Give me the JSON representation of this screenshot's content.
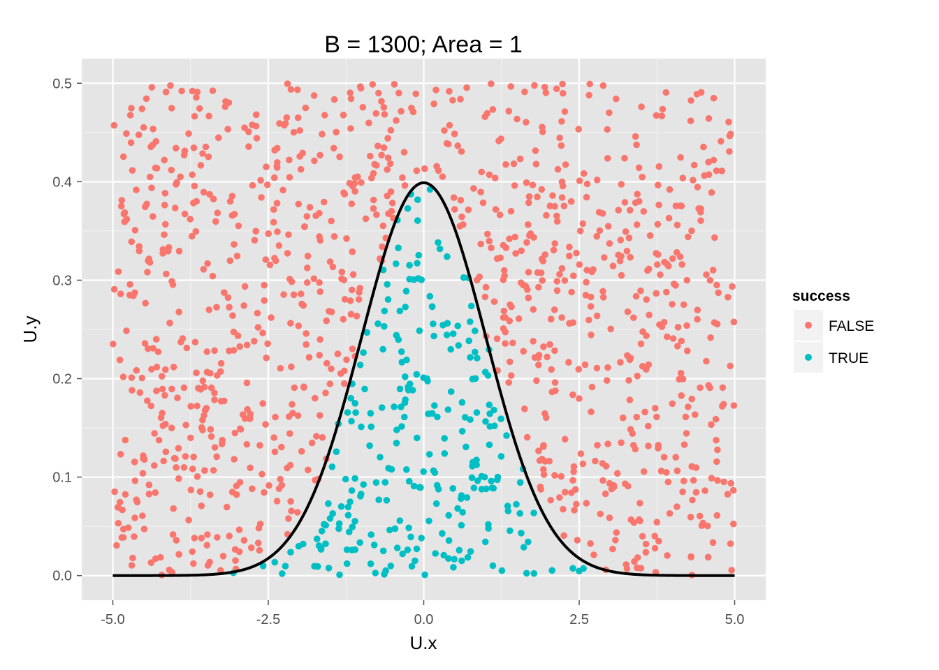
{
  "chart_data": {
    "type": "scatter",
    "title": "B = 1300; Area = 1",
    "xlabel": "U.x",
    "ylabel": "U.y",
    "xlim": [
      -5.5,
      5.5
    ],
    "ylim": [
      -0.025,
      0.525
    ],
    "x_ticks": [
      -5.0,
      -2.5,
      0.0,
      2.5,
      5.0
    ],
    "x_tick_labels": [
      "-5.0",
      "-2.5",
      "0.0",
      "2.5",
      "5.0"
    ],
    "y_ticks": [
      0.0,
      0.1,
      0.2,
      0.3,
      0.4,
      0.5
    ],
    "y_tick_labels": [
      "0.0",
      "0.1",
      "0.2",
      "0.3",
      "0.4",
      "0.5"
    ],
    "grid": true,
    "legend": {
      "title": "success",
      "position": "right",
      "entries": [
        {
          "label": "FALSE",
          "color": "#F8766D"
        },
        {
          "label": "TRUE",
          "color": "#00BFC4"
        }
      ]
    },
    "n_points": 1300,
    "x_range": [
      -5,
      5
    ],
    "y_range": [
      0,
      0.5
    ],
    "curve": {
      "name": "dnorm",
      "mean": 0,
      "sd": 1,
      "x_range": [
        -5,
        5
      ],
      "color": "#000000"
    },
    "series": [
      {
        "name": "FALSE",
        "color": "#F8766D"
      },
      {
        "name": "TRUE",
        "color": "#00BFC4"
      }
    ]
  },
  "colors": {
    "panel_background": "#E5E5E5",
    "grid_major": "#FFFFFF",
    "legend_key_background": "#F2F2F2"
  }
}
